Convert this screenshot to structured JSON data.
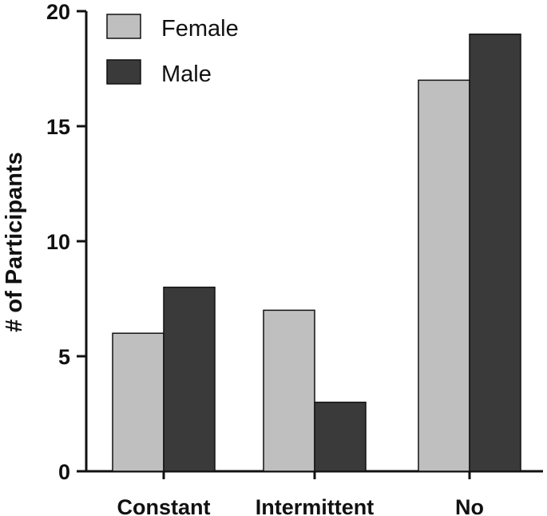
{
  "chart_data": {
    "type": "bar",
    "title": "",
    "xlabel": "",
    "ylabel": "# of Participants",
    "categories": [
      "Constant",
      "Intermittent",
      "No"
    ],
    "series": [
      {
        "name": "Female",
        "color": "#bfbfbf",
        "values": [
          6,
          7,
          17
        ]
      },
      {
        "name": "Male",
        "color": "#3a3a3a",
        "values": [
          8,
          3,
          19
        ]
      }
    ],
    "ylim": [
      0,
      20
    ],
    "yticks": [
      0,
      5,
      10,
      15,
      20
    ],
    "legend_position": "top-left",
    "grid": false
  }
}
